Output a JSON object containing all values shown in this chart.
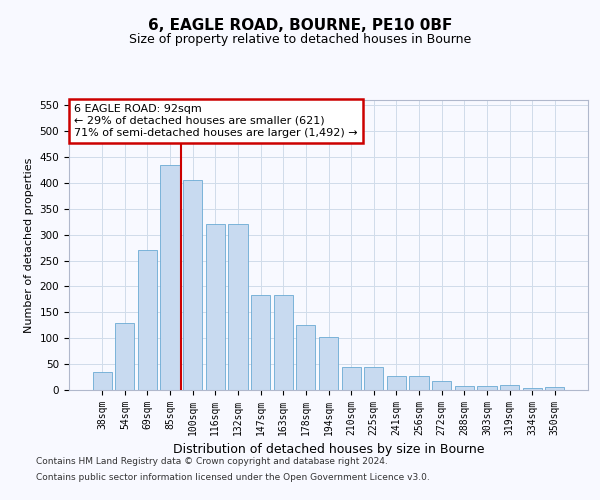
{
  "title1": "6, EAGLE ROAD, BOURNE, PE10 0BF",
  "title2": "Size of property relative to detached houses in Bourne",
  "xlabel": "Distribution of detached houses by size in Bourne",
  "ylabel": "Number of detached properties",
  "categories": [
    "38sqm",
    "54sqm",
    "69sqm",
    "85sqm",
    "100sqm",
    "116sqm",
    "132sqm",
    "147sqm",
    "163sqm",
    "178sqm",
    "194sqm",
    "210sqm",
    "225sqm",
    "241sqm",
    "256sqm",
    "272sqm",
    "288sqm",
    "303sqm",
    "319sqm",
    "334sqm",
    "350sqm"
  ],
  "bar_values": [
    35,
    130,
    270,
    435,
    405,
    320,
    320,
    183,
    183,
    125,
    103,
    44,
    44,
    28,
    28,
    17,
    8,
    8,
    10,
    4,
    6
  ],
  "bar_color": "#c8daf0",
  "bar_edge_color": "#6aaad4",
  "grid_color": "#d0dcea",
  "background_color": "#f8f9ff",
  "annotation_line1": "6 EAGLE ROAD: 92sqm",
  "annotation_line2": "← 29% of detached houses are smaller (621)",
  "annotation_line3": "71% of semi-detached houses are larger (1,492) →",
  "annotation_box_facecolor": "#ffffff",
  "annotation_box_edge_color": "#cc0000",
  "vertical_line_color": "#cc0000",
  "vertical_line_x": 3.5,
  "ylim": [
    0,
    560
  ],
  "yticks": [
    0,
    50,
    100,
    150,
    200,
    250,
    300,
    350,
    400,
    450,
    500,
    550
  ],
  "footer1": "Contains HM Land Registry data © Crown copyright and database right 2024.",
  "footer2": "Contains public sector information licensed under the Open Government Licence v3.0.",
  "title1_fontsize": 11,
  "title2_fontsize": 9,
  "ylabel_fontsize": 8,
  "xlabel_fontsize": 9,
  "tick_fontsize": 7,
  "footer_fontsize": 6.5,
  "ann_fontsize": 8
}
